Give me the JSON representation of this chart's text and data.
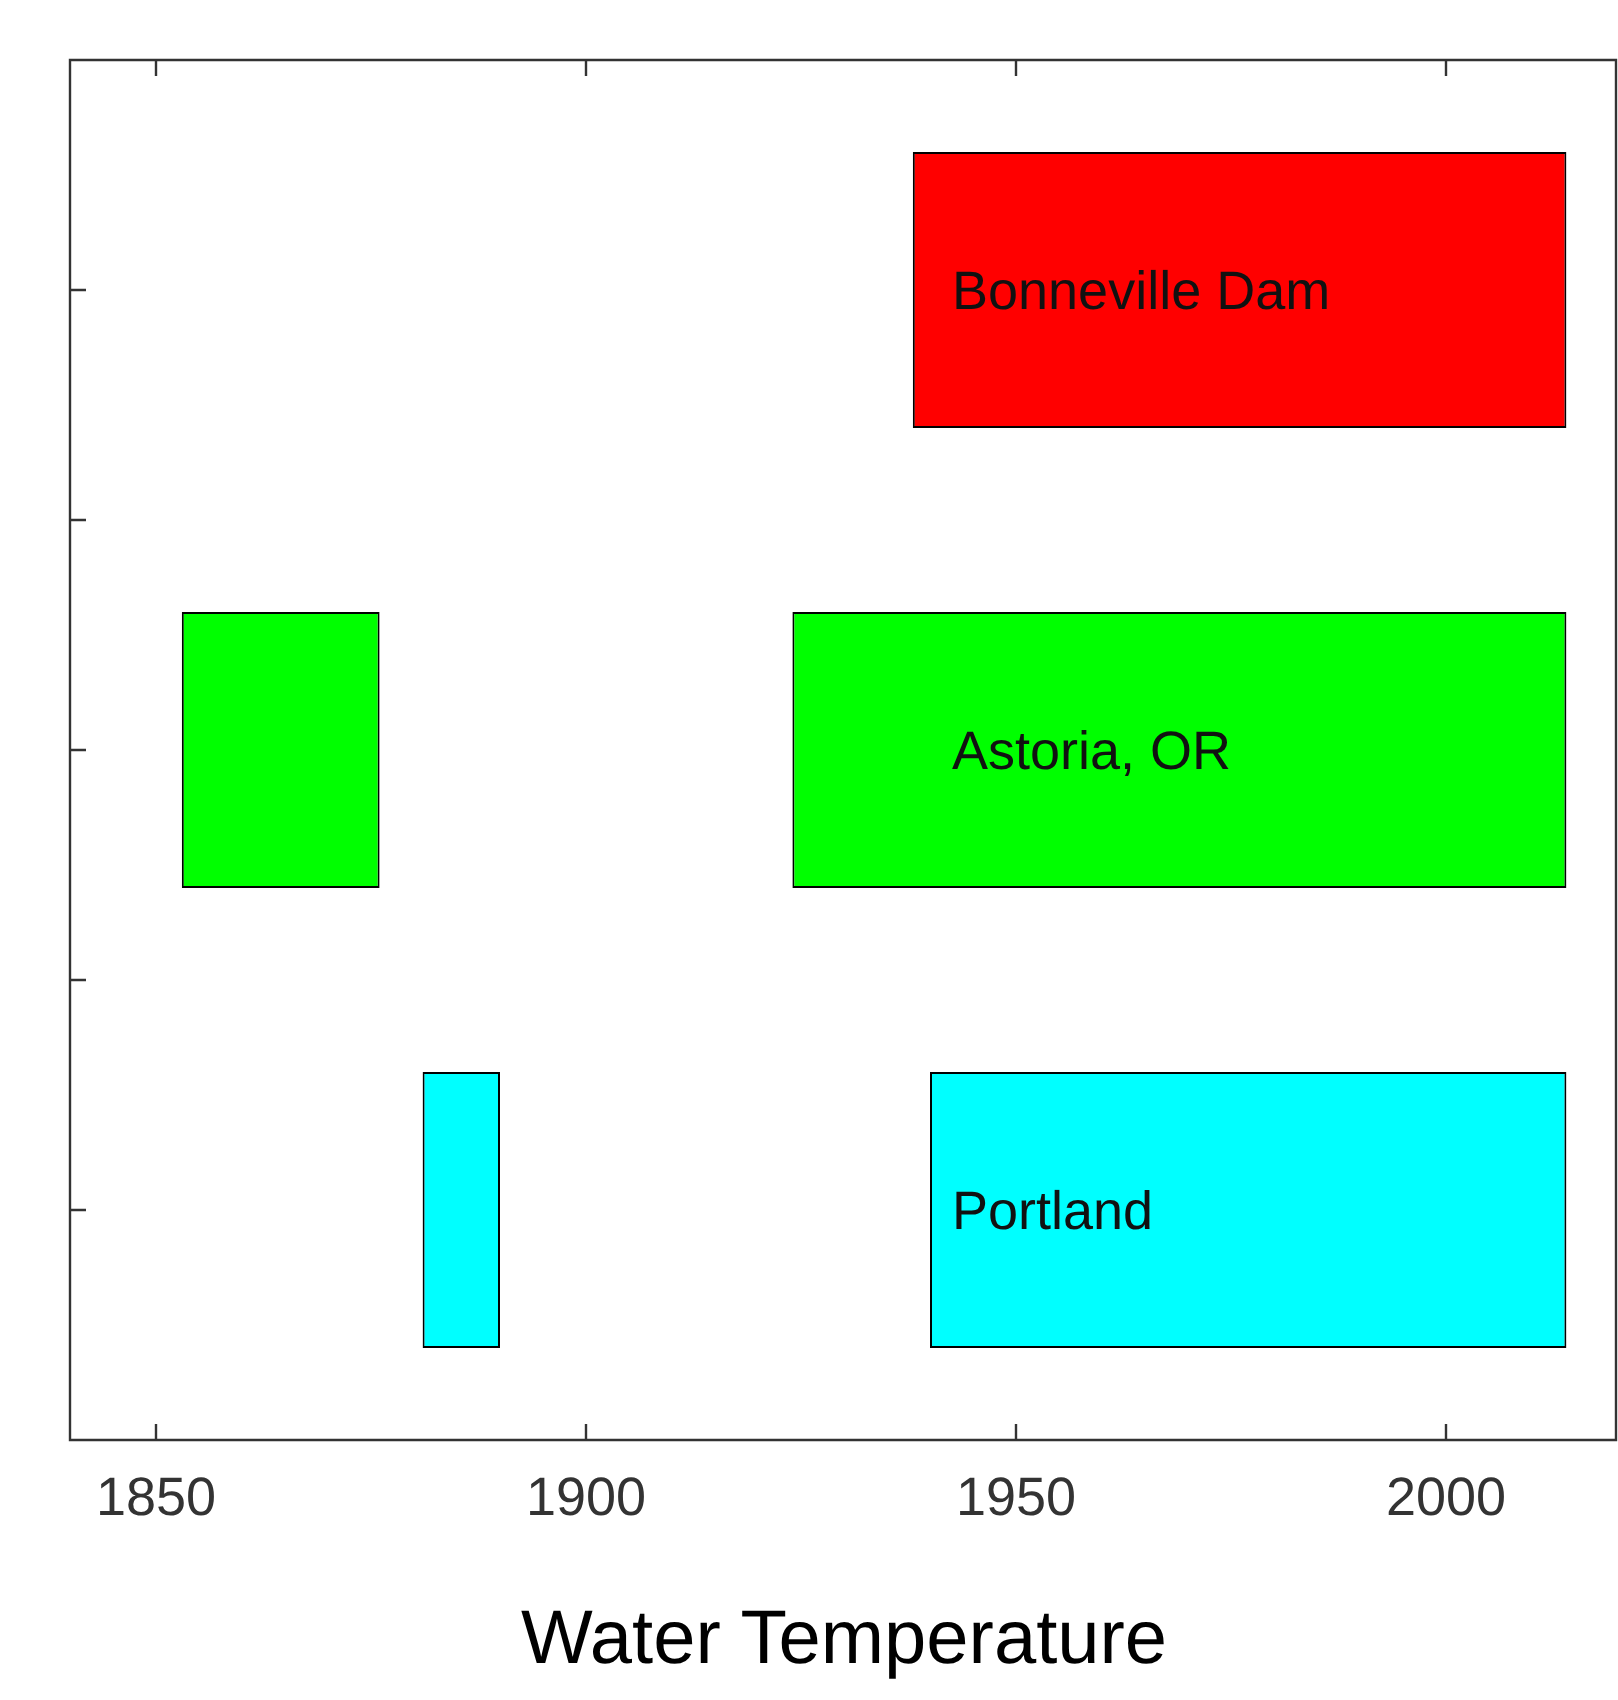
{
  "chart_data": {
    "type": "bar",
    "orientation": "horizontal",
    "xlabel": "Water Temperature",
    "categories": [
      "Bonneville Dam",
      "Astoria, OR",
      "Portland"
    ],
    "series": [
      {
        "colors": [
          "#ff0000",
          "#00ff00",
          "#00ffff"
        ],
        "base": [
          1938,
          1924,
          1940
        ],
        "values": [
          76,
          90,
          74
        ]
      },
      {
        "colors": [
          "#ff0000",
          "#00ff00",
          "#00ffff"
        ],
        "base": [
          null,
          1853,
          1881
        ],
        "values": [
          null,
          23,
          9
        ]
      }
    ],
    "xlim": [
      1840,
      2020
    ],
    "xticks": [
      1850,
      1900,
      1950,
      2000
    ],
    "tick_labels": "x",
    "grid": false,
    "legend": false
  }
}
